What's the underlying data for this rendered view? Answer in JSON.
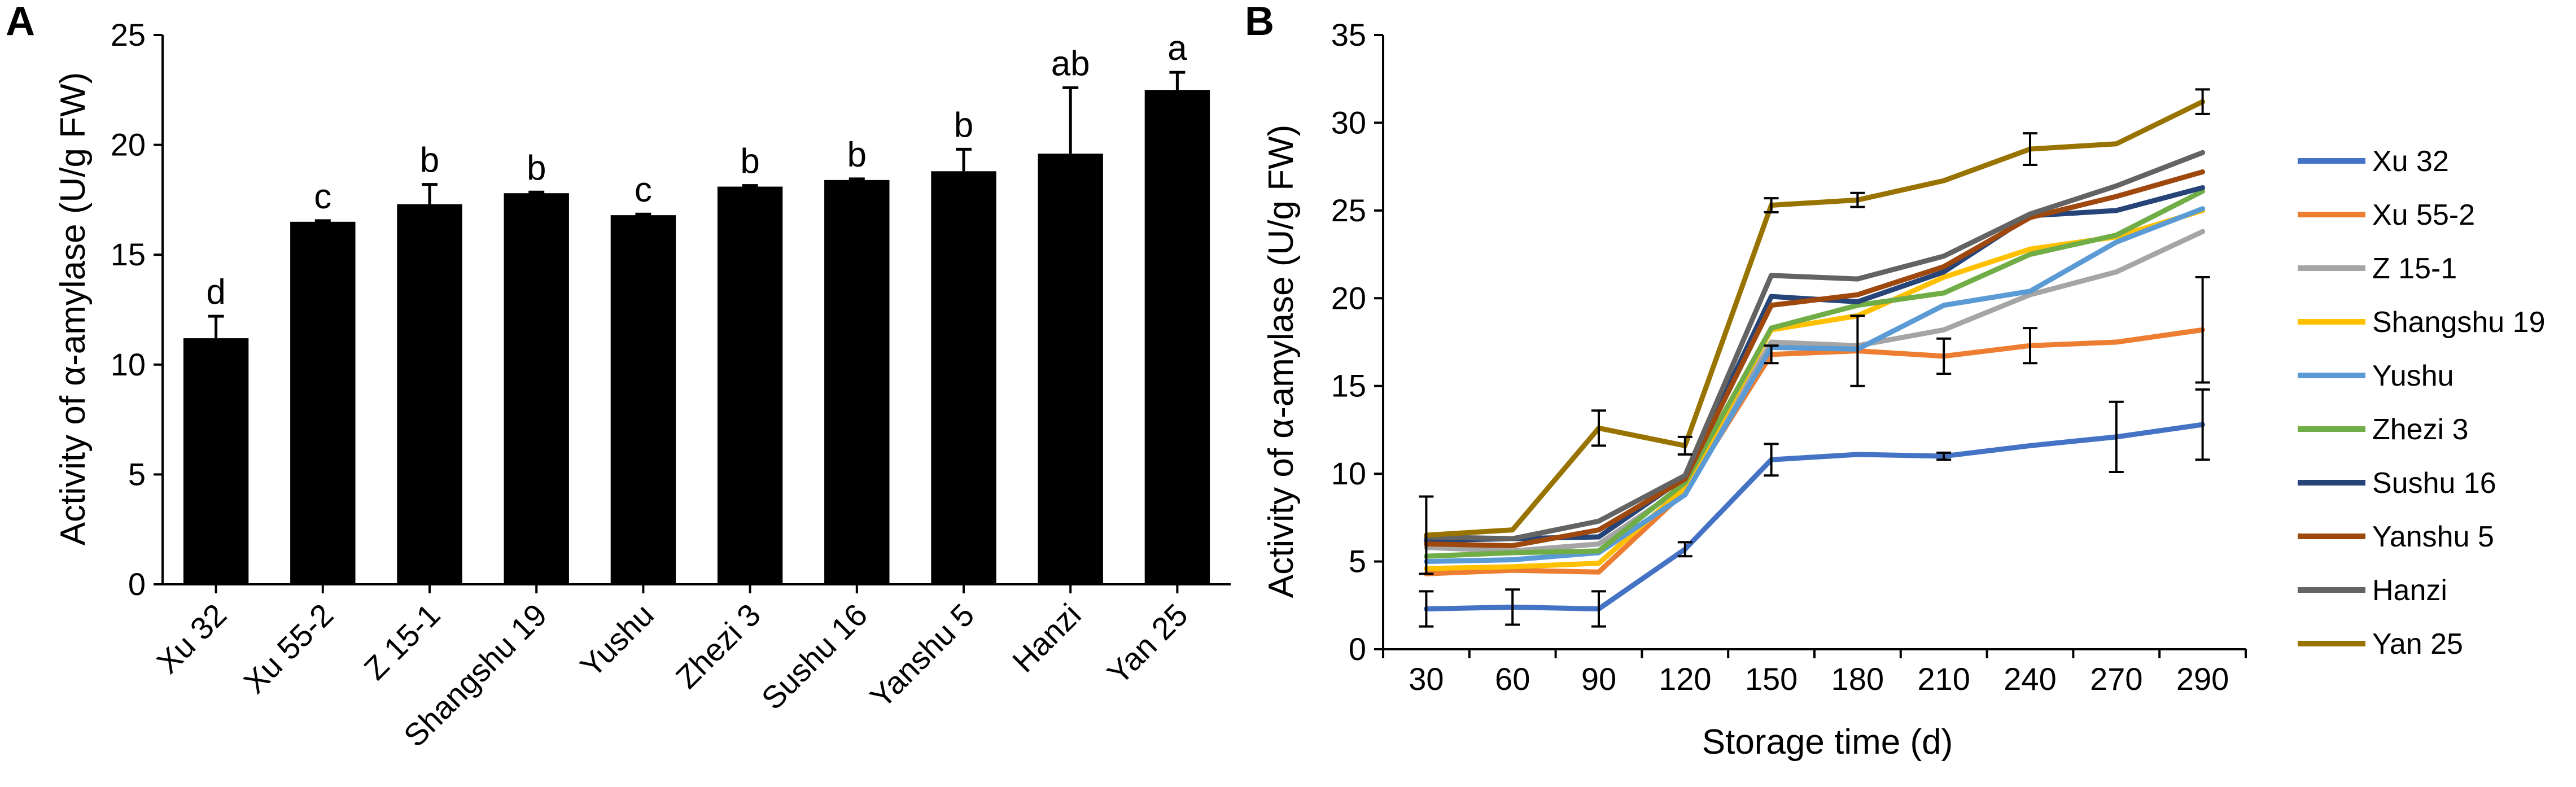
{
  "chart_data": [
    {
      "panel_label": "A",
      "type": "bar",
      "title": "",
      "xlabel": "",
      "ylabel": "Activity of α-amylase (U/g FW)",
      "ylim": [
        0,
        25
      ],
      "yticks": [
        "0",
        "5",
        "10",
        "15",
        "20",
        "25"
      ],
      "categories": [
        "Xu 32",
        "Xu 55-2",
        "Z 15-1",
        "Shangshu 19",
        "Yushu",
        "Zhezi 3",
        "Sushu 16",
        "Yanshu 5",
        "Hanzi",
        "Yan 25"
      ],
      "values": [
        11.2,
        16.5,
        17.3,
        17.8,
        16.8,
        18.1,
        18.4,
        18.8,
        19.6,
        22.5
      ],
      "errors": [
        1.0,
        0.05,
        0.9,
        0.05,
        0.05,
        0.05,
        0.05,
        1.0,
        3.0,
        0.8
      ],
      "labels": [
        "d",
        "c",
        "b",
        "b",
        "c",
        "b",
        "b",
        "b",
        "ab",
        "a"
      ],
      "bar_color": "#000000"
    },
    {
      "panel_label": "B",
      "type": "line",
      "title": "",
      "xlabel": "Storage time (d)",
      "ylabel": "Activity of α-amylase (U/g FW)",
      "ylim": [
        0,
        35
      ],
      "yticks": [
        "0",
        "5",
        "10",
        "15",
        "20",
        "25",
        "30",
        "35"
      ],
      "x": [
        "30",
        "60",
        "90",
        "120",
        "150",
        "180",
        "210",
        "240",
        "270",
        "290"
      ],
      "legend_position": "right",
      "series": [
        {
          "name": "Xu 32",
          "color": "#4472C4",
          "values": [
            2.3,
            2.4,
            2.3,
            5.7,
            10.8,
            11.1,
            11.0,
            11.6,
            12.1,
            12.8
          ],
          "errors": [
            1.0,
            1.0,
            1.0,
            0.4,
            0.9,
            0,
            0.2,
            0,
            2.0,
            2.0
          ]
        },
        {
          "name": "Xu 55-2",
          "color": "#ED7D31",
          "values": [
            4.3,
            4.5,
            4.4,
            9.0,
            16.8,
            17.0,
            16.7,
            17.3,
            17.5,
            18.2
          ],
          "errors": [
            0,
            0,
            0,
            0,
            0.5,
            2.0,
            1.0,
            1.0,
            0,
            3.0
          ]
        },
        {
          "name": "Z 15-1",
          "color": "#A5A5A5",
          "values": [
            5.8,
            5.6,
            6.0,
            9.3,
            17.5,
            17.3,
            18.2,
            20.2,
            21.5,
            23.8
          ],
          "errors": [
            0,
            0,
            0,
            0,
            0,
            0,
            0,
            0,
            0,
            0
          ]
        },
        {
          "name": "Shangshu 19",
          "color": "#FFC000",
          "values": [
            4.6,
            4.7,
            4.9,
            9.2,
            18.2,
            19.0,
            21.2,
            22.8,
            23.5,
            25.0
          ],
          "errors": [
            0,
            0,
            0,
            0,
            0,
            0,
            0,
            0,
            0,
            0
          ]
        },
        {
          "name": "Yushu",
          "color": "#5B9BD5",
          "values": [
            5.0,
            5.1,
            5.5,
            8.8,
            17.2,
            17.1,
            19.6,
            20.4,
            23.2,
            25.1
          ],
          "errors": [
            0,
            0,
            0,
            0,
            0,
            0,
            0,
            0,
            0,
            0
          ]
        },
        {
          "name": "Zhezi 3",
          "color": "#70AD47",
          "values": [
            5.3,
            5.5,
            5.6,
            9.5,
            18.3,
            19.6,
            20.3,
            22.5,
            23.6,
            26.1
          ],
          "errors": [
            0,
            0,
            0,
            0,
            0,
            0,
            0,
            0,
            0,
            0
          ]
        },
        {
          "name": "Sushu 16",
          "color": "#264478",
          "values": [
            6.2,
            6.3,
            6.4,
            9.8,
            20.1,
            19.8,
            21.5,
            24.7,
            25.0,
            26.3
          ],
          "errors": [
            0,
            0,
            0,
            0,
            0,
            0,
            0,
            0,
            0,
            0
          ]
        },
        {
          "name": "Yanshu 5",
          "color": "#9E480E",
          "values": [
            6.0,
            5.9,
            6.8,
            9.7,
            19.6,
            20.2,
            21.8,
            24.6,
            25.8,
            27.2
          ],
          "errors": [
            0,
            0,
            0,
            0,
            0,
            0,
            0,
            0,
            0,
            0
          ]
        },
        {
          "name": "Hanzi",
          "color": "#636363",
          "values": [
            6.4,
            6.3,
            7.3,
            9.9,
            21.3,
            21.1,
            22.4,
            24.8,
            26.4,
            28.3
          ],
          "errors": [
            0,
            0,
            0,
            0,
            0,
            0,
            0,
            0,
            0,
            0
          ]
        },
        {
          "name": "Yan 25",
          "color": "#997300",
          "values": [
            6.5,
            6.8,
            12.6,
            11.6,
            25.3,
            25.6,
            26.7,
            28.5,
            28.8,
            31.2
          ],
          "errors": [
            2.2,
            0,
            1.0,
            0.5,
            0.4,
            0.4,
            0,
            0.9,
            0,
            0.7
          ]
        }
      ]
    }
  ]
}
